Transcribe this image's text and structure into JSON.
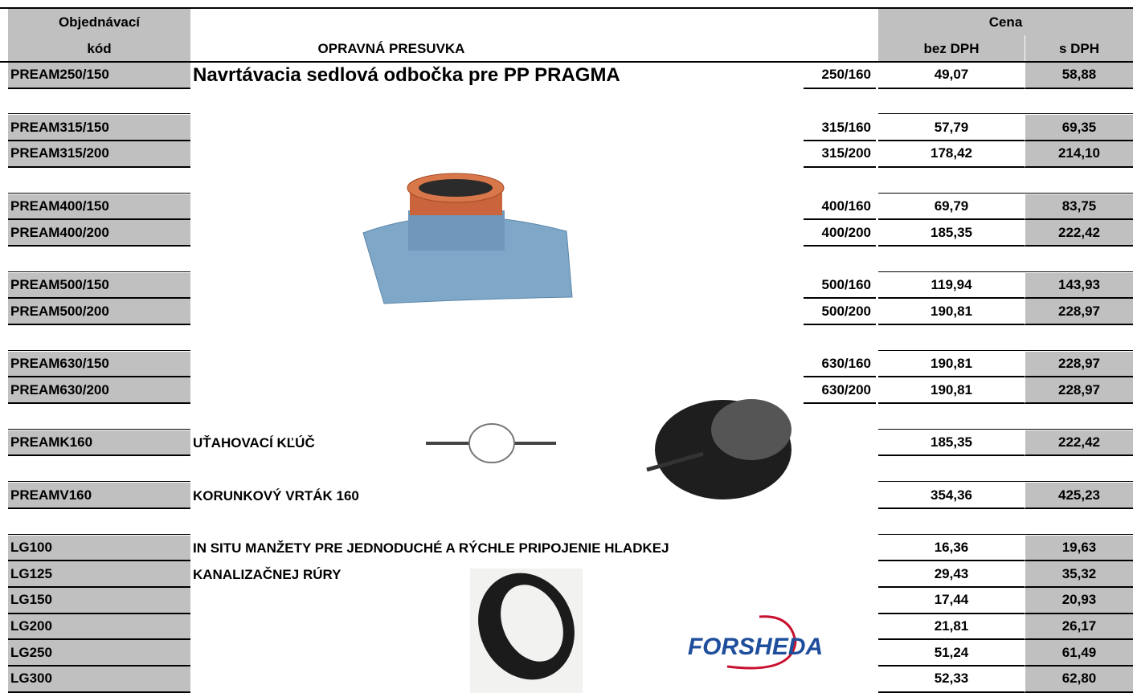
{
  "header": {
    "code_line1": "Objednávací",
    "code_line2": "kód",
    "title": "OPRAVNÁ PRESUVKA",
    "price": "Cena",
    "price_net": "bez DPH",
    "price_vat": "s DPH"
  },
  "groups": [
    [
      {
        "code": "PREAM250/150",
        "description": "Navrtávacia sedlová odbočka pre PP PRAGMA",
        "size": "250/160",
        "net": "49,07",
        "vat": "58,88"
      }
    ],
    [
      {
        "code": "PREAM315/150",
        "size": "315/160",
        "net": "57,79",
        "vat": "69,35"
      },
      {
        "code": "PREAM315/200",
        "size": "315/200",
        "net": "178,42",
        "vat": "214,10"
      }
    ],
    [
      {
        "code": "PREAM400/150",
        "size": "400/160",
        "net": "69,79",
        "vat": "83,75"
      },
      {
        "code": "PREAM400/200",
        "size": "400/200",
        "net": "185,35",
        "vat": "222,42"
      }
    ],
    [
      {
        "code": "PREAM500/150",
        "size": "500/160",
        "net": "119,94",
        "vat": "143,93"
      },
      {
        "code": "PREAM500/200",
        "size": "500/200",
        "net": "190,81",
        "vat": "228,97"
      }
    ],
    [
      {
        "code": "PREAM630/150",
        "size": "630/160",
        "net": "190,81",
        "vat": "228,97"
      },
      {
        "code": "PREAM630/200",
        "size": "630/200",
        "net": "190,81",
        "vat": "228,97"
      }
    ],
    [
      {
        "code": "PREAMK160",
        "description": "UŤAHOVACÍ KĽÚČ",
        "net": "185,35",
        "vat": "222,42"
      }
    ],
    [
      {
        "code": "PREAMV160",
        "description": "KORUNKOVÝ VRTÁK 160",
        "net": "354,36",
        "vat": "425,23"
      }
    ],
    [
      {
        "code": "LG100",
        "description": "IN SITU MANŽETY PRE JEDNODUCHÉ A RÝCHLE PRIPOJENIE HLADKEJ",
        "net": "16,36",
        "vat": "19,63"
      },
      {
        "code": "LG125",
        "description": "KANALIZAČNEJ RÚRY",
        "net": "29,43",
        "vat": "35,32"
      },
      {
        "code": "LG150",
        "net": "17,44",
        "vat": "20,93"
      },
      {
        "code": "LG200",
        "net": "21,81",
        "vat": "26,17"
      },
      {
        "code": "LG250",
        "net": "51,24",
        "vat": "61,49"
      },
      {
        "code": "LG300",
        "net": "52,33",
        "vat": "62,80"
      }
    ]
  ],
  "logo": "FORSHEDA"
}
